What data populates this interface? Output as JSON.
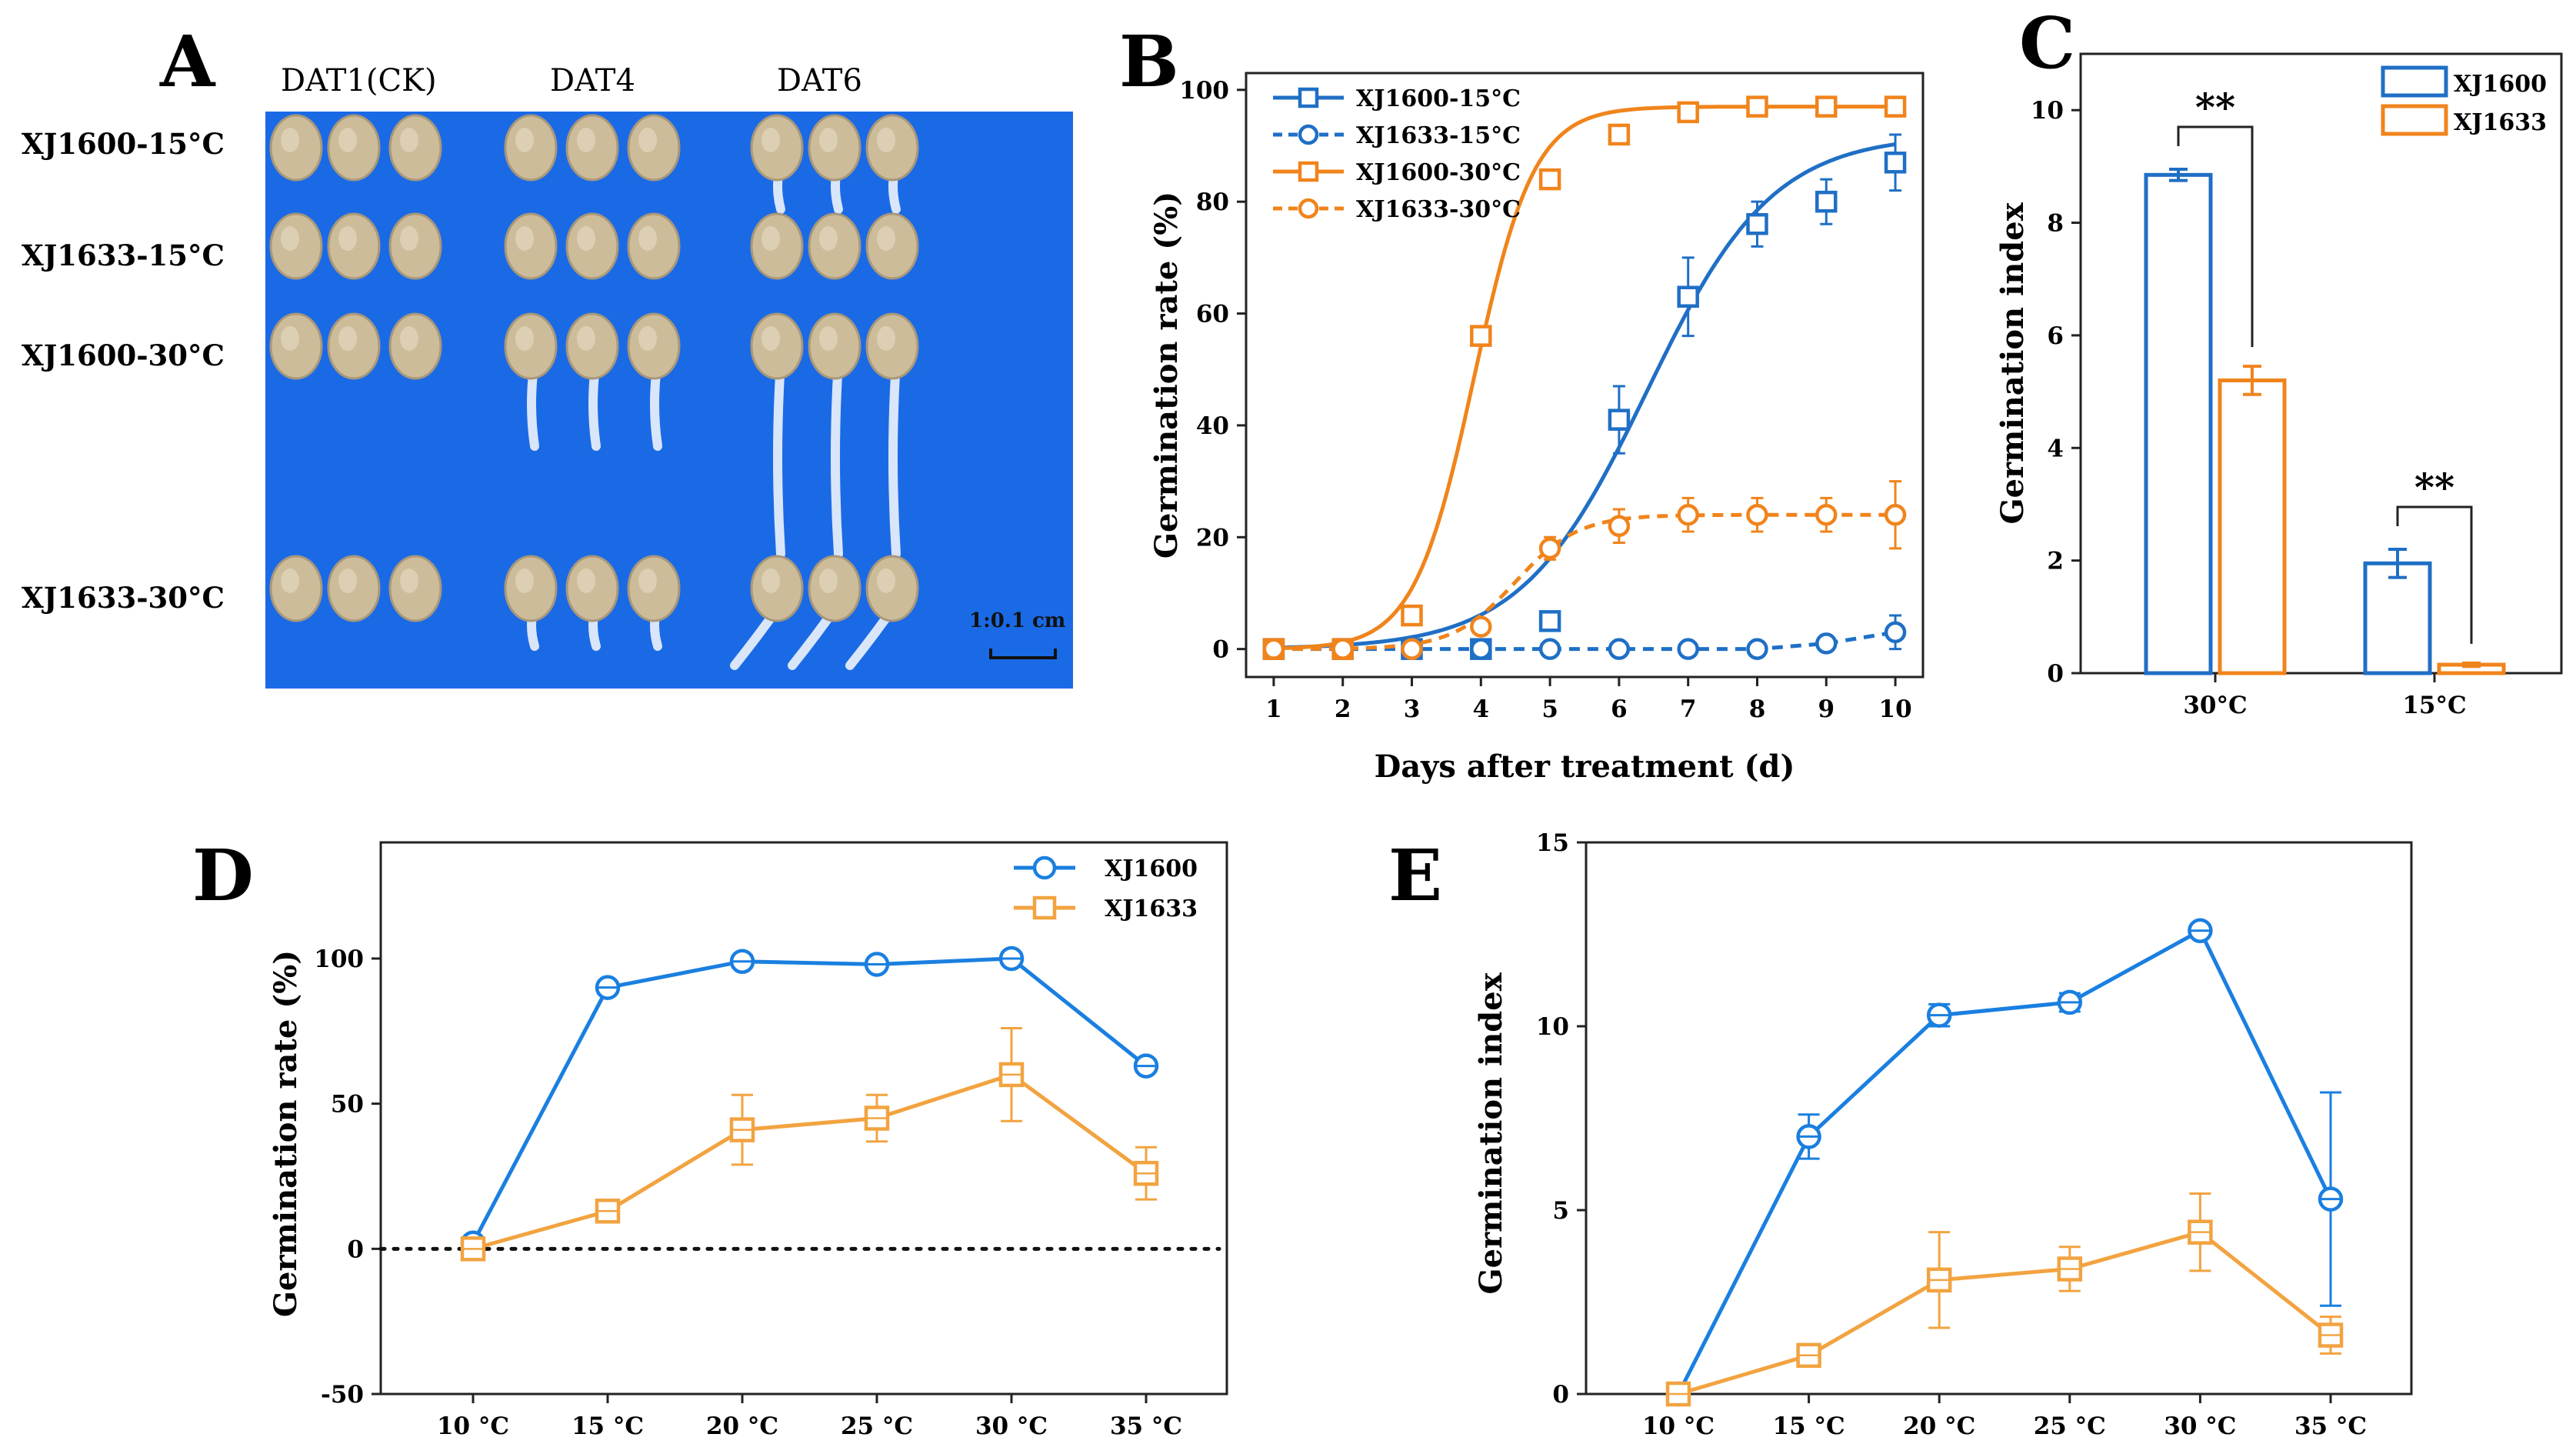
{
  "panels": {
    "A": {
      "letter": "A",
      "columns": [
        "DAT1(CK)",
        "DAT4",
        "DAT6"
      ],
      "rows": [
        "XJ1600-15°C",
        "XJ1633-15°C",
        "XJ1600-30°C",
        "XJ1633-30°C"
      ],
      "scale_label": "1:0.1 cm",
      "background_color": "#1a6ae6",
      "seed_color": "#cdbc9a"
    },
    "B": {
      "letter": "B"
    },
    "C": {
      "letter": "C"
    },
    "D": {
      "letter": "D"
    },
    "E": {
      "letter": "E"
    }
  },
  "chart_data": [
    {
      "id": "B",
      "type": "line",
      "xlabel": "Days after treatment (d)",
      "ylabel": "Germination rate (%)",
      "x": [
        1,
        2,
        3,
        4,
        5,
        6,
        7,
        8,
        9,
        10
      ],
      "xlim": [
        0.6,
        10.4
      ],
      "ylim": [
        -5,
        103
      ],
      "yticks": [
        0,
        20,
        40,
        60,
        80,
        100
      ],
      "series": [
        {
          "name": "XJ1600-15°C",
          "color": "#1f6fc5",
          "marker": "square",
          "dashed": false,
          "values": [
            0,
            0,
            0,
            0,
            5,
            41,
            63,
            76,
            80,
            87
          ],
          "errors": [
            0,
            0,
            0,
            0,
            0,
            6,
            7,
            4,
            4,
            5
          ],
          "fit": {
            "max": 92,
            "mid": 6.4,
            "slope": 1.1
          }
        },
        {
          "name": "XJ1633-15°C",
          "color": "#1f6fc5",
          "marker": "circle",
          "dashed": true,
          "values": [
            0,
            0,
            0,
            0,
            0,
            0,
            0,
            0,
            1,
            3
          ],
          "errors": [
            0,
            0,
            0,
            0,
            0,
            0,
            0,
            0,
            1,
            3
          ]
        },
        {
          "name": "XJ1600-30°C",
          "color": "#f0841c",
          "marker": "square",
          "dashed": false,
          "values": [
            0,
            0,
            6,
            56,
            84,
            92,
            96,
            97,
            97,
            97
          ],
          "errors": [
            0,
            0,
            0,
            0,
            0,
            0,
            0,
            0,
            0,
            0
          ],
          "fit": {
            "max": 97,
            "mid": 3.9,
            "slope": 2.3
          }
        },
        {
          "name": "XJ1633-30°C",
          "color": "#f0841c",
          "marker": "circle",
          "dashed": true,
          "values": [
            0,
            0,
            0,
            4,
            18,
            22,
            24,
            24,
            24,
            24
          ],
          "errors": [
            0,
            0,
            0,
            0,
            2,
            3,
            3,
            3,
            3,
            6
          ],
          "fit": {
            "max": 24,
            "mid": 4.5,
            "slope": 2.2
          }
        }
      ]
    },
    {
      "id": "C",
      "type": "bar",
      "ylabel": "Germination index",
      "categories": [
        "30°C",
        "15°C"
      ],
      "ylim": [
        0,
        11
      ],
      "yticks": [
        0,
        2,
        4,
        6,
        8,
        10
      ],
      "significance": [
        "**",
        "**"
      ],
      "series": [
        {
          "name": "XJ1600",
          "color": "#1f6fc5",
          "values": [
            8.85,
            1.95
          ],
          "errors": [
            0.1,
            0.25
          ]
        },
        {
          "name": "XJ1633",
          "color": "#f0841c",
          "values": [
            5.2,
            0.15
          ],
          "errors": [
            0.25,
            0.03
          ]
        }
      ]
    },
    {
      "id": "D",
      "type": "line",
      "ylabel": "Germination rate (%)",
      "categories": [
        "10 °C",
        "15 °C",
        "20 °C",
        "25 °C",
        "30 °C",
        "35 °C"
      ],
      "ylim": [
        -50,
        140
      ],
      "yticks": [
        -50,
        0,
        50,
        100
      ],
      "zero_line": true,
      "series": [
        {
          "name": "XJ1600",
          "color": "#1a7fe0",
          "marker": "circle",
          "values": [
            2,
            90,
            99,
            98,
            100,
            63
          ],
          "errors": [
            0,
            2,
            2,
            1,
            2,
            2
          ]
        },
        {
          "name": "XJ1633",
          "color": "#f2a340",
          "marker": "square",
          "values": [
            0,
            13,
            41,
            45,
            60,
            26
          ],
          "errors": [
            0,
            3,
            12,
            8,
            16,
            9
          ]
        }
      ]
    },
    {
      "id": "E",
      "type": "line",
      "ylabel": "Germination index",
      "categories": [
        "10 °C",
        "15 °C",
        "20 °C",
        "25 °C",
        "30 °C",
        "35 °C"
      ],
      "ylim": [
        0,
        15
      ],
      "yticks": [
        0,
        5,
        10,
        15
      ],
      "series": [
        {
          "name": "XJ1600",
          "color": "#1a7fe0",
          "marker": "circle",
          "values": [
            0,
            7.0,
            10.3,
            10.65,
            12.6,
            5.3
          ],
          "errors": [
            0,
            0.6,
            0.3,
            0.25,
            0.1,
            2.9
          ]
        },
        {
          "name": "XJ1633",
          "color": "#f2a340",
          "marker": "square",
          "values": [
            0,
            1.05,
            3.1,
            3.4,
            4.4,
            1.6
          ],
          "errors": [
            0,
            0.3,
            1.3,
            0.6,
            1.05,
            0.5
          ]
        }
      ]
    }
  ]
}
